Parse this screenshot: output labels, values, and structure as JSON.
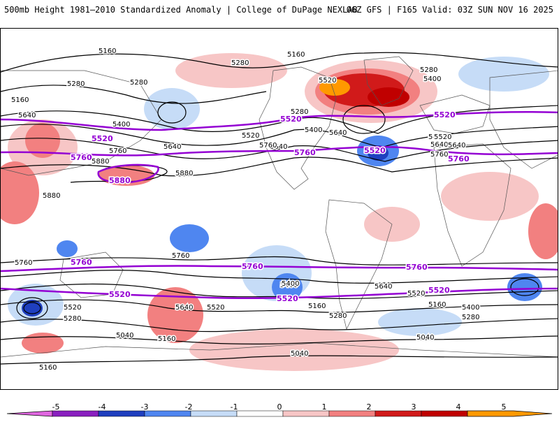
{
  "header": {
    "title": "500mb Height 1981–2010 Standardized Anomaly | College of DuPage NEXLAB",
    "run_info": "06Z GFS | F165 Valid: 03Z SUN NOV 16 2025"
  },
  "colors": {
    "contour_black": "#000000",
    "contour_purple": "#9400d3",
    "neg5": "#e066e0",
    "neg4": "#8a1fbf",
    "neg3": "#1f3fbf",
    "neg2": "#4f86f0",
    "neg1": "#c6dcf7",
    "pos1": "#f7c6c6",
    "pos2": "#f28080",
    "pos3": "#d11a1a",
    "pos4": "#c00000",
    "pos5": "#ff9900"
  },
  "contour_labels": {
    "black": [
      "5160",
      "5160",
      "5280",
      "5280",
      "5280",
      "5160",
      "5280",
      "5400",
      "5520",
      "5400",
      "5640",
      "5640",
      "5760",
      "5880",
      "5880",
      "5880",
      "5280",
      "5400",
      "5640",
      "5520",
      "5640",
      "5760",
      "5760",
      "5640",
      "5280",
      "5400",
      "5520",
      "5640",
      "5760",
      "5400",
      "5640",
      "5520",
      "5280",
      "5160",
      "5040",
      "5160",
      "5040",
      "5400",
      "5520",
      "5640",
      "5760",
      "5160",
      "5280",
      "5400",
      "5520",
      "5280",
      "5040",
      "5160"
    ],
    "purple": [
      "5520",
      "5520",
      "5760",
      "5880",
      "5520",
      "5760",
      "5520",
      "5760",
      "5760",
      "5760",
      "5760",
      "5520",
      "5520",
      "5520"
    ]
  },
  "colorbar": {
    "labels": [
      "-5",
      "-4",
      "-3",
      "-2",
      "-1",
      "0",
      "1",
      "2",
      "3",
      "4",
      "5"
    ]
  }
}
